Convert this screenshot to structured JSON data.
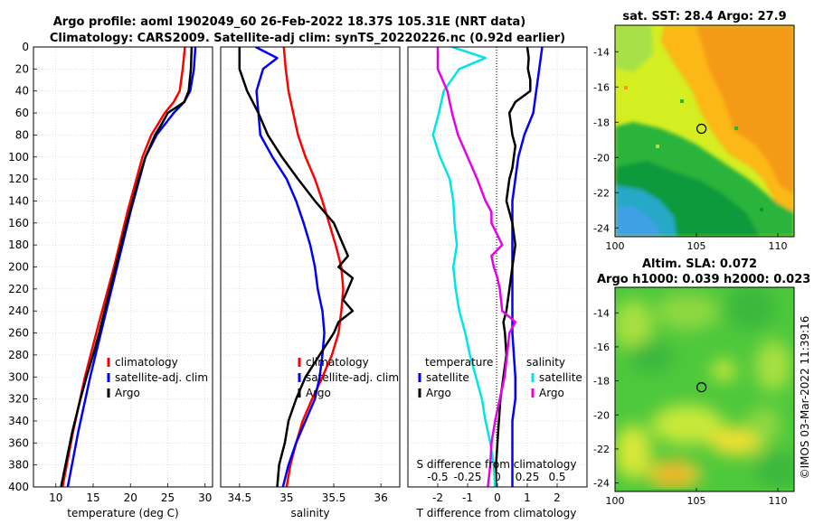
{
  "title_line1": "Argo profile: aoml 1902049_60 26-Feb-2022 18.37S 105.31E (NRT data)",
  "title_line2": "Climatology: CARS2009. Satellite-adj clim: synTS_20220226.nc (0.92d earlier)",
  "credit": "©IMOS 03-Mar-2022 11:39:16",
  "colors": {
    "climatology": "#ff0000",
    "satellite": "#0000ff",
    "argo": "#000000",
    "sat_salinity": "#00e5e5",
    "argo_salinity": "#e600e6"
  },
  "chart_data": [
    {
      "type": "line",
      "name": "temperature-profile",
      "xlabel": "temperature (deg C)",
      "ylim": [
        400,
        0
      ],
      "xlim": [
        7,
        31
      ],
      "x_ticks": [
        10,
        15,
        20,
        25,
        30
      ],
      "y_ticks": [
        0,
        20,
        40,
        60,
        80,
        100,
        120,
        140,
        160,
        180,
        200,
        220,
        240,
        260,
        280,
        300,
        320,
        340,
        360,
        380,
        400
      ],
      "legend": [
        "climatology",
        "satellite-adj. clim",
        "Argo"
      ],
      "series": [
        {
          "name": "climatology",
          "depth": [
            0,
            20,
            40,
            50,
            60,
            80,
            100,
            150,
            200,
            250,
            300,
            350,
            400
          ],
          "values": [
            27.3,
            27.0,
            26.6,
            25.8,
            24.6,
            22.8,
            21.6,
            19.6,
            17.8,
            15.8,
            13.9,
            12.3,
            10.9
          ]
        },
        {
          "name": "satellite-adj. clim",
          "depth": [
            0,
            20,
            40,
            50,
            60,
            80,
            100,
            150,
            200,
            250,
            300,
            350,
            400
          ],
          "values": [
            28.7,
            28.5,
            28.0,
            27.2,
            25.8,
            23.5,
            22.0,
            20.0,
            18.2,
            16.4,
            14.6,
            13.0,
            11.6
          ]
        },
        {
          "name": "Argo",
          "depth": [
            0,
            20,
            40,
            50,
            55,
            60,
            70,
            80,
            100,
            120,
            150,
            170,
            200,
            230,
            260,
            280,
            300,
            320,
            350,
            370,
            400
          ],
          "values": [
            28.2,
            28.1,
            27.8,
            27.2,
            26.1,
            25.0,
            24.2,
            23.3,
            22.0,
            21.1,
            19.9,
            19.1,
            18.0,
            16.9,
            15.8,
            15.0,
            14.1,
            13.3,
            12.2,
            11.6,
            10.7
          ]
        }
      ]
    },
    {
      "type": "line",
      "name": "salinity-profile",
      "xlabel": "salinity",
      "ylim": [
        400,
        0
      ],
      "xlim": [
        34.3,
        36.2
      ],
      "x_ticks": [
        34.5,
        35,
        35.5,
        36
      ],
      "x_tick_labels": [
        "34.5",
        "35",
        "35.5",
        "36"
      ],
      "legend": [
        "climatology",
        "satellite-adj. clim",
        "Argo"
      ],
      "series": [
        {
          "name": "climatology",
          "depth": [
            0,
            20,
            40,
            60,
            80,
            100,
            120,
            140,
            160,
            180,
            200,
            220,
            240,
            260,
            280,
            300,
            320,
            340,
            360,
            380,
            400
          ],
          "values": [
            34.97,
            34.99,
            35.02,
            35.07,
            35.12,
            35.2,
            35.3,
            35.38,
            35.45,
            35.52,
            35.58,
            35.6,
            35.58,
            35.55,
            35.48,
            35.38,
            35.27,
            35.17,
            35.1,
            35.04,
            35.0
          ]
        },
        {
          "name": "satellite-adj. clim",
          "depth": [
            0,
            10,
            20,
            40,
            60,
            80,
            100,
            120,
            140,
            160,
            180,
            200,
            220,
            240,
            260,
            280,
            300,
            320,
            340,
            360,
            380,
            400
          ],
          "values": [
            34.67,
            34.9,
            34.75,
            34.68,
            34.7,
            34.72,
            34.85,
            35.0,
            35.1,
            35.18,
            35.25,
            35.3,
            35.33,
            35.38,
            35.4,
            35.38,
            35.35,
            35.3,
            35.2,
            35.1,
            35.02,
            34.96
          ]
        },
        {
          "name": "Argo",
          "depth": [
            0,
            20,
            40,
            60,
            80,
            100,
            120,
            140,
            160,
            180,
            190,
            200,
            210,
            230,
            240,
            250,
            260,
            280,
            300,
            320,
            340,
            360,
            380,
            400
          ],
          "values": [
            34.5,
            34.5,
            34.58,
            34.7,
            34.8,
            34.95,
            35.12,
            35.3,
            35.5,
            35.6,
            35.65,
            35.55,
            35.7,
            35.6,
            35.7,
            35.55,
            35.5,
            35.35,
            35.2,
            35.1,
            35.02,
            34.98,
            34.92,
            34.9
          ]
        }
      ]
    },
    {
      "type": "line",
      "name": "difference-profile",
      "xlabel": "T difference from climatology",
      "top_xlabel": "S difference from climatology",
      "ylim": [
        400,
        0
      ],
      "xlim": [
        -3,
        3
      ],
      "x_ticks": [
        -2,
        -1,
        0,
        1,
        2
      ],
      "top_ticks": [
        -0.5,
        -0.25,
        0,
        0.25,
        0.5
      ],
      "top_tick_labels": [
        "-0.5",
        "-0.25",
        "0",
        "0.25",
        "0.5"
      ],
      "legend": {
        "temperature": "temperature",
        "salinity": "salinity",
        "t_sat": "satellite",
        "t_argo": "Argo",
        "s_sat": "satellite",
        "s_argo": "Argo"
      },
      "series": [
        {
          "name": "T satellite",
          "depth": [
            0,
            20,
            40,
            60,
            80,
            100,
            140,
            200,
            260,
            300,
            320,
            340,
            360,
            380,
            400
          ],
          "values": [
            1.5,
            1.4,
            1.3,
            1.2,
            0.9,
            0.7,
            0.5,
            0.5,
            0.5,
            0.6,
            0.6,
            0.5,
            0.5,
            0.5,
            0.5
          ]
        },
        {
          "name": "T Argo",
          "depth": [
            0,
            10,
            20,
            30,
            40,
            50,
            60,
            70,
            80,
            90,
            100,
            110,
            120,
            140,
            160,
            180,
            200,
            220,
            240,
            250,
            260,
            280,
            300,
            320,
            340,
            360,
            380,
            400
          ],
          "values": [
            1.0,
            1.05,
            1.02,
            1.1,
            1.1,
            0.6,
            0.4,
            0.45,
            0.5,
            0.6,
            0.55,
            0.5,
            0.4,
            0.3,
            0.5,
            0.6,
            0.5,
            0.4,
            0.3,
            0.2,
            0.25,
            0.3,
            0.2,
            0.1,
            0.05,
            0.0,
            -0.05,
            -0.05
          ]
        },
        {
          "name": "S satellite",
          "depth": [
            0,
            10,
            20,
            40,
            60,
            80,
            100,
            120,
            140,
            160,
            180,
            200,
            220,
            240,
            260,
            280,
            300,
            320,
            340,
            360,
            380,
            400
          ],
          "values": [
            -0.38,
            -0.1,
            -0.32,
            -0.45,
            -0.49,
            -0.54,
            -0.48,
            -0.4,
            -0.37,
            -0.36,
            -0.34,
            -0.37,
            -0.35,
            -0.32,
            -0.27,
            -0.23,
            -0.18,
            -0.13,
            -0.1,
            -0.06,
            -0.03,
            -0.02
          ]
        },
        {
          "name": "S Argo",
          "depth": [
            0,
            20,
            40,
            60,
            80,
            100,
            120,
            140,
            150,
            160,
            180,
            190,
            200,
            210,
            220,
            240,
            250,
            260,
            280,
            300,
            320,
            340,
            360,
            380,
            400
          ],
          "values": [
            -0.5,
            -0.5,
            -0.42,
            -0.38,
            -0.33,
            -0.25,
            -0.17,
            -0.1,
            -0.05,
            -0.05,
            0.04,
            -0.05,
            -0.03,
            0.0,
            0.02,
            0.04,
            0.15,
            0.1,
            0.08,
            0.06,
            0.02,
            -0.02,
            -0.05,
            -0.06,
            -0.08
          ]
        }
      ]
    },
    {
      "type": "heatmap",
      "name": "sst-map",
      "title": "sat. SST: 28.4 Argo: 27.9",
      "x_ticks": [
        100,
        105,
        110
      ],
      "y_ticks": [
        -14,
        -16,
        -18,
        -20,
        -22,
        -24
      ],
      "xlim": [
        100,
        111
      ],
      "ylim": [
        -24.5,
        -12.5
      ],
      "argo_position": [
        105.31,
        -18.37
      ]
    },
    {
      "type": "heatmap",
      "name": "sla-map",
      "title_line1": "Altim. SLA: 0.072",
      "title_line2": "Argo h1000: 0.039 h2000: 0.023",
      "x_ticks": [
        100,
        105,
        110
      ],
      "y_ticks": [
        -14,
        -16,
        -18,
        -20,
        -22,
        -24
      ],
      "xlim": [
        100,
        111
      ],
      "ylim": [
        -24.5,
        -12.5
      ],
      "argo_position": [
        105.31,
        -18.37
      ]
    }
  ]
}
